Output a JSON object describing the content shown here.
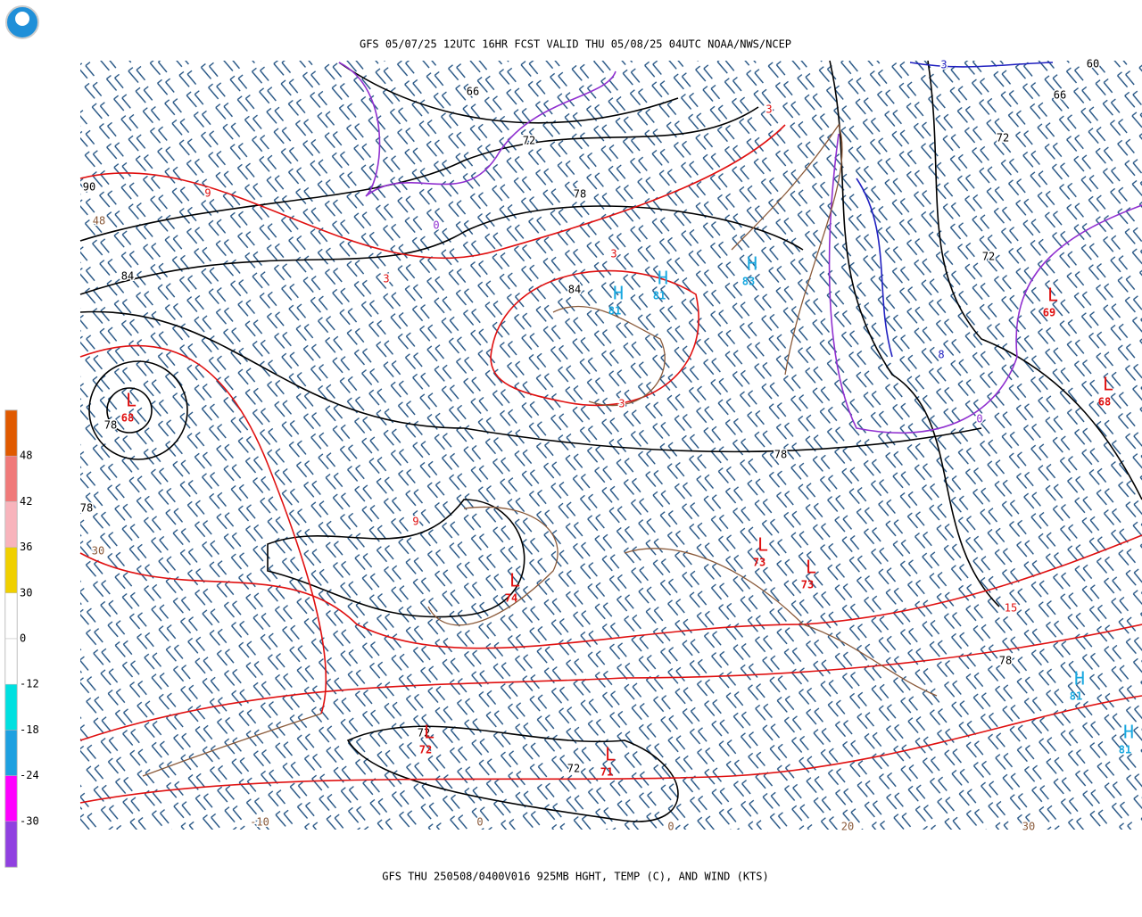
{
  "header": {
    "title": "GFS 05/07/25 12UTC 16HR FCST VALID THU 05/08/25 04UTC NOAA/NWS/NCEP"
  },
  "footer": {
    "caption": "GFS THU 250508/0400V016 925MB HGHT, TEMP (C), AND WIND (KTS)"
  },
  "colorbar": {
    "colors": [
      "#e05a00",
      "#f07a7a",
      "#f8b4bc",
      "#f0d000",
      "#ffffff",
      "#ffffff",
      "#00e0e0",
      "#1ea0e0",
      "#ff00ff",
      "#9040e0"
    ],
    "ticks": [
      48,
      42,
      36,
      30,
      0,
      -12,
      -18,
      -24,
      -30
    ]
  },
  "contour_labels": [
    {
      "text": "66",
      "color": "#000000"
    },
    {
      "text": "72",
      "color": "#000000"
    },
    {
      "text": "78",
      "color": "#000000"
    },
    {
      "text": "90",
      "color": "#000000"
    },
    {
      "text": "84",
      "color": "#000000"
    },
    {
      "text": "84",
      "color": "#000000"
    },
    {
      "text": "72",
      "color": "#000000"
    },
    {
      "text": "72",
      "color": "#000000"
    },
    {
      "text": "66",
      "color": "#000000"
    },
    {
      "text": "60",
      "color": "#000000"
    },
    {
      "text": "78",
      "color": "#000000"
    },
    {
      "text": "78",
      "color": "#000000"
    },
    {
      "text": "78",
      "color": "#000000"
    },
    {
      "text": "78",
      "color": "#000000"
    },
    {
      "text": "72",
      "color": "#000000"
    },
    {
      "text": "72",
      "color": "#000000"
    },
    {
      "text": "9",
      "color": "#e01010"
    },
    {
      "text": "3",
      "color": "#e01010"
    },
    {
      "text": "3",
      "color": "#e01010"
    },
    {
      "text": "3",
      "color": "#e01010"
    },
    {
      "text": "9",
      "color": "#e01010"
    },
    {
      "text": "15",
      "color": "#e01010"
    },
    {
      "text": "3",
      "color": "#e01010"
    },
    {
      "text": "0",
      "color": "#9030d0"
    },
    {
      "text": "0",
      "color": "#9030d0"
    },
    {
      "text": "3",
      "color": "#2020c0"
    },
    {
      "text": "8",
      "color": "#2020c0"
    },
    {
      "text": "48",
      "color": "#8a5a3a"
    },
    {
      "text": "30",
      "color": "#8a5a3a"
    },
    {
      "text": "-10",
      "color": "#8a5a3a"
    },
    {
      "text": "0",
      "color": "#8a5a3a"
    },
    {
      "text": "0",
      "color": "#8a5a3a"
    },
    {
      "text": "20",
      "color": "#8a5a3a"
    },
    {
      "text": "30",
      "color": "#8a5a3a"
    }
  ],
  "centers": [
    {
      "type": "L",
      "value": "68"
    },
    {
      "type": "L",
      "value": "74"
    },
    {
      "type": "L",
      "value": "73"
    },
    {
      "type": "L",
      "value": "73"
    },
    {
      "type": "L",
      "value": "72"
    },
    {
      "type": "L",
      "value": "71"
    },
    {
      "type": "L",
      "value": "69"
    },
    {
      "type": "L",
      "value": "68"
    },
    {
      "type": "H",
      "value": "81"
    },
    {
      "type": "H",
      "value": "81"
    },
    {
      "type": "H",
      "value": "83"
    },
    {
      "type": "H",
      "value": "81"
    },
    {
      "type": "H",
      "value": "81"
    }
  ]
}
